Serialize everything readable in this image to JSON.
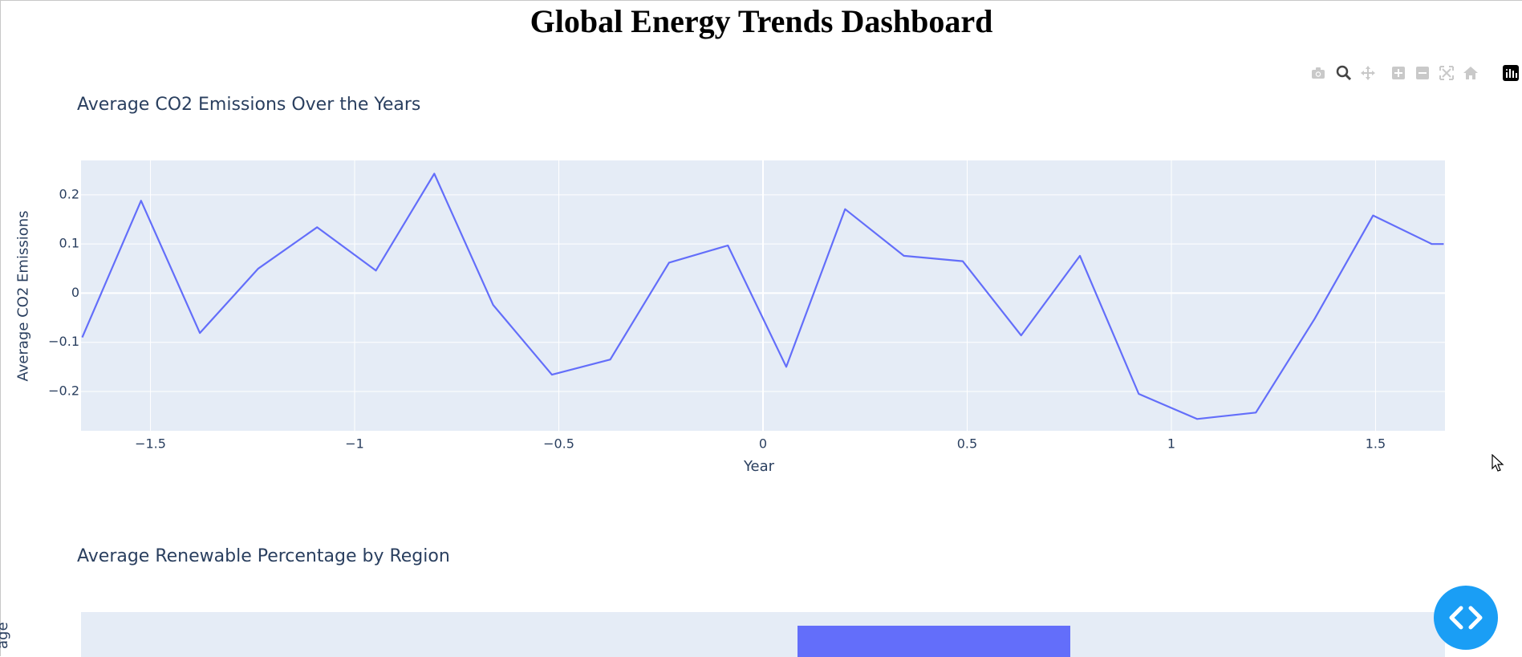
{
  "page": {
    "title": "Global Energy Trends Dashboard"
  },
  "modebar": {
    "buttons": [
      "camera-icon",
      "zoom-icon",
      "pan-icon",
      "zoom-in-icon",
      "zoom-out-icon",
      "autoscale-icon",
      "reset-axes-icon",
      "plotly-logo-icon"
    ]
  },
  "chart_data": [
    {
      "type": "line",
      "title": "Average CO2 Emissions Over the Years",
      "xlabel": "Year",
      "ylabel": "Average CO2 Emissions",
      "xlim": [
        -1.67,
        1.67
      ],
      "ylim": [
        -0.28,
        0.27
      ],
      "xticks": [
        "−1.5",
        "−1",
        "−0.5",
        "0",
        "0.5",
        "1",
        "1.5"
      ],
      "xtick_values": [
        -1.5,
        -1,
        -0.5,
        0,
        0.5,
        1,
        1.5
      ],
      "yticks": [
        "−0.2",
        "−0.1",
        "0",
        "0.1",
        "0.2"
      ],
      "ytick_values": [
        -0.2,
        -0.1,
        0,
        0.1,
        0.2
      ],
      "grid": true,
      "color": "#636efa",
      "x": [
        -1.667,
        -1.523,
        -1.379,
        -1.236,
        -1.092,
        -0.948,
        -0.805,
        -0.661,
        -0.517,
        -0.374,
        -0.23,
        -0.086,
        0.057,
        0.201,
        0.345,
        0.489,
        0.632,
        0.776,
        0.92,
        1.063,
        1.207,
        1.351,
        1.494,
        1.638,
        1.667
      ],
      "y": [
        -0.09,
        0.188,
        -0.081,
        0.05,
        0.134,
        0.046,
        0.243,
        -0.024,
        -0.166,
        -0.135,
        0.062,
        0.097,
        -0.15,
        0.171,
        0.076,
        0.065,
        -0.086,
        0.076,
        -0.205,
        -0.256,
        -0.243,
        -0.052,
        0.158,
        0.1,
        0.1
      ]
    },
    {
      "type": "bar",
      "title": "Average Renewable Percentage by Region",
      "ylabel": "age",
      "color": "#636efa"
    }
  ],
  "cursor": "mouse-pointer-icon",
  "fab": {
    "icon": "code-icon"
  }
}
